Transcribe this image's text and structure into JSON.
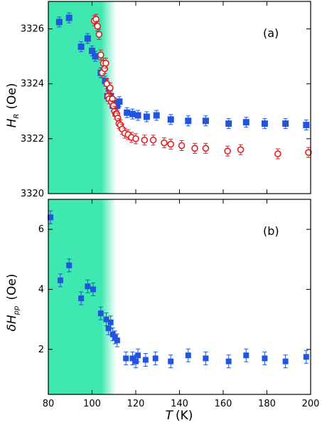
{
  "chart_data": [
    {
      "type": "scatter",
      "panel_label": "(a)",
      "ylabel_symbol": "H",
      "ylabel_subscript": "R",
      "ylabel_unit": "(Oe)",
      "xlim": [
        80,
        200
      ],
      "ylim": [
        3320,
        3327
      ],
      "yticks": [
        3320,
        3322,
        3324,
        3326
      ],
      "shaded_region_x": [
        80,
        111
      ],
      "shaded_color": "#3ee8b0",
      "series": [
        {
          "marker": "filled-square",
          "color": "#2255dd",
          "x": [
            85,
            89.5,
            95,
            98,
            100,
            101.5,
            104,
            106,
            107,
            107.8,
            108.5,
            109.5,
            110.5,
            111.5,
            112.5,
            116,
            118.5,
            121,
            125,
            129.5,
            136,
            144,
            152,
            162.5,
            170.5,
            179,
            188.5,
            198
          ],
          "y": [
            3326.25,
            3326.4,
            3325.35,
            3325.65,
            3325.2,
            3325.0,
            3324.4,
            3324.1,
            3323.55,
            3323.85,
            3323.55,
            3323.2,
            3323.3,
            3323.2,
            3323.35,
            3322.95,
            3322.9,
            3322.85,
            3322.8,
            3322.85,
            3322.7,
            3322.65,
            3322.65,
            3322.55,
            3322.6,
            3322.55,
            3322.55,
            3322.5
          ]
        },
        {
          "marker": "open-circle",
          "color": "#e02020",
          "x": [
            101,
            101.8,
            102.5,
            103.2,
            104,
            104.6,
            105.2,
            105.8,
            106.3,
            106.8,
            107.3,
            107.8,
            108.3,
            108.8,
            109.3,
            109.8,
            110.3,
            110.8,
            111.3,
            111.8,
            112.3,
            113,
            113.8,
            115,
            116.5,
            118,
            120,
            124,
            128,
            133,
            136,
            141,
            147,
            152,
            162,
            168,
            185,
            199
          ],
          "y": [
            3326.3,
            3326.35,
            3326.1,
            3325.8,
            3325.05,
            3324.4,
            3324.75,
            3324.55,
            3324.75,
            3324.0,
            3323.55,
            3323.45,
            3323.85,
            3323.35,
            3323.45,
            3323.2,
            3323.0,
            3322.9,
            3322.9,
            3322.75,
            3322.55,
            3322.5,
            3322.35,
            3322.2,
            3322.15,
            3322.05,
            3322.0,
            3321.95,
            3321.95,
            3321.85,
            3321.8,
            3321.75,
            3321.65,
            3321.65,
            3321.55,
            3321.6,
            3321.45,
            3321.5
          ]
        }
      ]
    },
    {
      "type": "scatter",
      "panel_label": "(b)",
      "ylabel_symbol": "δH",
      "ylabel_subscript": "pp",
      "ylabel_unit": "(Oe)",
      "xlabel_symbol": "T",
      "xlabel_unit": "(K)",
      "xlim": [
        80,
        200
      ],
      "ylim": [
        0.5,
        7.0
      ],
      "xticks": [
        80,
        100,
        120,
        140,
        160,
        180,
        200
      ],
      "yticks": [
        2,
        4,
        6
      ],
      "shaded_region_x": [
        80,
        111
      ],
      "shaded_color": "#3ee8b0",
      "series": [
        {
          "marker": "filled-square",
          "color": "#2255dd",
          "x": [
            81,
            85.5,
            89.5,
            95,
            98,
            100.5,
            104,
            106.5,
            107.5,
            108.5,
            109.5,
            110.5,
            111.5,
            115.5,
            118.5,
            120,
            121,
            124.5,
            129,
            136,
            144,
            152,
            162.5,
            170.5,
            179,
            188.5,
            198
          ],
          "y": [
            6.4,
            4.3,
            4.8,
            3.7,
            4.1,
            4.0,
            3.2,
            3.0,
            2.7,
            2.9,
            2.5,
            2.4,
            2.3,
            1.7,
            1.7,
            1.6,
            1.8,
            1.65,
            1.7,
            1.6,
            1.8,
            1.7,
            1.6,
            1.8,
            1.7,
            1.6,
            1.75
          ]
        }
      ]
    }
  ]
}
